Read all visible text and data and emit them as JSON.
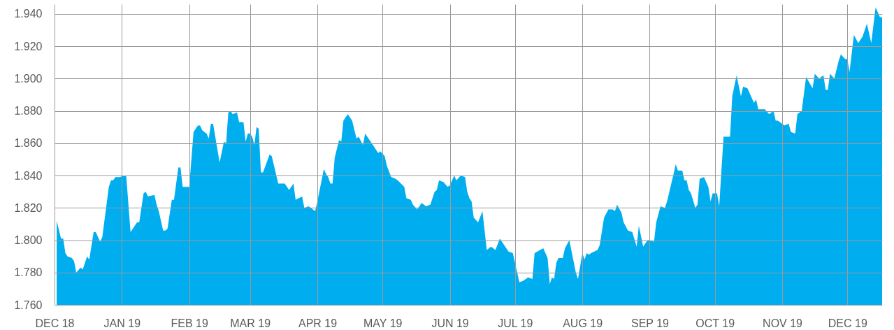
{
  "chart_data": {
    "type": "area",
    "color": "#00aeef",
    "grid": true,
    "xlim": [
      "2018-12-01",
      "2019-12-17"
    ],
    "ylim": [
      1.76,
      1.946
    ],
    "xticks": [
      {
        "value": "2018-12-01",
        "label": "DEC 18"
      },
      {
        "value": "2019-01-01",
        "label": "JAN 19"
      },
      {
        "value": "2019-02-01",
        "label": "FEB 19"
      },
      {
        "value": "2019-03-01",
        "label": "MAR 19"
      },
      {
        "value": "2019-04-01",
        "label": "APR 19"
      },
      {
        "value": "2019-05-01",
        "label": "MAY 19"
      },
      {
        "value": "2019-06-01",
        "label": "JUN 19"
      },
      {
        "value": "2019-07-01",
        "label": "JUL 19"
      },
      {
        "value": "2019-08-01",
        "label": "AUG 19"
      },
      {
        "value": "2019-09-01",
        "label": "SEP 19"
      },
      {
        "value": "2019-10-01",
        "label": "OCT 19"
      },
      {
        "value": "2019-11-01",
        "label": "NOV 19"
      },
      {
        "value": "2019-12-01",
        "label": "DEC 19"
      }
    ],
    "yticks": [
      {
        "value": 1.76,
        "label": "1.760"
      },
      {
        "value": 1.78,
        "label": "1.780"
      },
      {
        "value": 1.8,
        "label": "1.800"
      },
      {
        "value": 1.82,
        "label": "1.820"
      },
      {
        "value": 1.84,
        "label": "1.840"
      },
      {
        "value": 1.86,
        "label": "1.860"
      },
      {
        "value": 1.88,
        "label": "1.880"
      },
      {
        "value": 1.9,
        "label": "1.900"
      },
      {
        "value": 1.92,
        "label": "1.920"
      },
      {
        "value": 1.94,
        "label": "1.940"
      }
    ],
    "x": [
      "2018-12-02",
      "2018-12-04",
      "2018-12-05",
      "2018-12-06",
      "2018-12-07",
      "2018-12-09",
      "2018-12-10",
      "2018-12-11",
      "2018-12-13",
      "2018-12-14",
      "2018-12-16",
      "2018-12-17",
      "2018-12-19",
      "2018-12-20",
      "2018-12-22",
      "2018-12-23",
      "2018-12-26",
      "2018-12-27",
      "2018-12-28",
      "2018-12-29",
      "2018-12-31",
      "2019-01-02",
      "2019-01-03",
      "2019-01-05",
      "2019-01-06",
      "2019-01-08",
      "2019-01-09",
      "2019-01-11",
      "2019-01-12",
      "2019-01-13",
      "2019-01-16",
      "2019-01-17",
      "2019-01-18",
      "2019-01-20",
      "2019-01-21",
      "2019-01-22",
      "2019-01-24",
      "2019-01-25",
      "2019-01-27",
      "2019-01-28",
      "2019-01-29",
      "2019-02-01",
      "2019-02-03",
      "2019-02-05",
      "2019-02-06",
      "2019-02-07",
      "2019-02-08",
      "2019-02-09",
      "2019-02-10",
      "2019-02-11",
      "2019-02-12",
      "2019-02-15",
      "2019-02-17",
      "2019-02-18",
      "2019-02-19",
      "2019-02-20",
      "2019-02-21",
      "2019-02-23",
      "2019-02-24",
      "2019-02-26",
      "2019-02-27",
      "2019-02-28",
      "2019-03-01",
      "2019-03-02",
      "2019-03-03",
      "2019-03-04",
      "2019-03-05",
      "2019-03-06",
      "2019-03-07",
      "2019-03-10",
      "2019-03-11",
      "2019-03-14",
      "2019-03-16",
      "2019-03-17",
      "2019-03-18",
      "2019-03-19",
      "2019-03-21",
      "2019-03-22",
      "2019-03-25",
      "2019-03-26",
      "2019-03-28",
      "2019-03-31",
      "2019-04-01",
      "2019-04-04",
      "2019-04-05",
      "2019-04-06",
      "2019-04-07",
      "2019-04-08",
      "2019-04-09",
      "2019-04-11",
      "2019-04-12",
      "2019-04-13",
      "2019-04-15",
      "2019-04-17",
      "2019-04-19",
      "2019-04-20",
      "2019-04-22",
      "2019-04-23",
      "2019-04-26",
      "2019-04-29",
      "2019-04-30",
      "2019-05-02",
      "2019-05-03",
      "2019-05-05",
      "2019-05-07",
      "2019-05-08",
      "2019-05-11",
      "2019-05-12",
      "2019-05-14",
      "2019-05-15",
      "2019-05-17",
      "2019-05-19",
      "2019-05-21",
      "2019-05-23",
      "2019-05-25",
      "2019-05-26",
      "2019-05-27",
      "2019-05-29",
      "2019-05-31",
      "2019-06-01",
      "2019-06-03",
      "2019-06-04",
      "2019-06-06",
      "2019-06-08",
      "2019-06-09",
      "2019-06-10",
      "2019-06-11",
      "2019-06-12",
      "2019-06-14",
      "2019-06-16",
      "2019-06-18",
      "2019-06-20",
      "2019-06-22",
      "2019-06-24",
      "2019-06-26",
      "2019-06-28",
      "2019-06-30",
      "2019-07-03",
      "2019-07-05",
      "2019-07-07",
      "2019-07-09",
      "2019-07-10",
      "2019-07-14",
      "2019-07-16",
      "2019-07-17",
      "2019-07-18",
      "2019-07-19",
      "2019-07-20",
      "2019-07-21",
      "2019-07-23",
      "2019-07-24",
      "2019-07-26",
      "2019-07-29",
      "2019-07-30",
      "2019-08-01",
      "2019-08-02",
      "2019-08-03",
      "2019-08-04",
      "2019-08-05",
      "2019-08-08",
      "2019-08-09",
      "2019-08-11",
      "2019-08-13",
      "2019-08-15",
      "2019-08-16",
      "2019-08-17",
      "2019-08-19",
      "2019-08-20",
      "2019-08-22",
      "2019-08-24",
      "2019-08-26",
      "2019-08-27",
      "2019-08-29",
      "2019-08-31",
      "2019-09-01",
      "2019-09-03",
      "2019-09-04",
      "2019-09-06",
      "2019-09-08",
      "2019-09-09",
      "2019-09-12",
      "2019-09-13",
      "2019-09-14",
      "2019-09-16",
      "2019-09-17",
      "2019-09-18",
      "2019-09-19",
      "2019-09-20",
      "2019-09-22",
      "2019-09-23",
      "2019-09-24",
      "2019-09-26",
      "2019-09-28",
      "2019-09-29",
      "2019-09-30",
      "2019-10-02",
      "2019-10-03",
      "2019-10-05",
      "2019-10-08",
      "2019-10-09",
      "2019-10-11",
      "2019-10-13",
      "2019-10-14",
      "2019-10-16",
      "2019-10-19",
      "2019-10-20",
      "2019-10-21",
      "2019-10-24",
      "2019-10-26",
      "2019-10-28",
      "2019-10-29",
      "2019-10-30",
      "2019-11-02",
      "2019-11-04",
      "2019-11-05",
      "2019-11-07",
      "2019-11-08",
      "2019-11-10",
      "2019-11-12",
      "2019-11-15",
      "2019-11-16",
      "2019-11-18",
      "2019-11-20",
      "2019-11-21",
      "2019-11-22",
      "2019-11-23",
      "2019-11-25",
      "2019-11-27",
      "2019-11-28",
      "2019-11-30",
      "2019-12-01",
      "2019-12-02",
      "2019-12-04",
      "2019-12-06",
      "2019-12-08",
      "2019-12-10",
      "2019-12-12",
      "2019-12-14",
      "2019-12-15",
      "2019-12-16",
      "2019-12-17"
    ],
    "values": [
      1.812,
      1.801,
      1.801,
      1.792,
      1.79,
      1.789,
      1.787,
      1.78,
      1.783,
      1.782,
      1.79,
      1.788,
      1.805,
      1.805,
      1.799,
      1.802,
      1.833,
      1.837,
      1.837,
      1.839,
      1.839,
      1.84,
      1.84,
      1.805,
      1.807,
      1.811,
      1.811,
      1.829,
      1.83,
      1.827,
      1.828,
      1.822,
      1.818,
      1.806,
      1.806,
      1.807,
      1.825,
      1.825,
      1.845,
      1.845,
      1.833,
      1.833,
      1.867,
      1.871,
      1.871,
      1.868,
      1.867,
      1.866,
      1.863,
      1.872,
      1.872,
      1.848,
      1.861,
      1.86,
      1.879,
      1.88,
      1.878,
      1.879,
      1.873,
      1.873,
      1.861,
      1.866,
      1.866,
      1.864,
      1.859,
      1.87,
      1.869,
      1.842,
      1.842,
      1.853,
      1.852,
      1.835,
      1.835,
      1.835,
      1.833,
      1.831,
      1.835,
      1.825,
      1.827,
      1.82,
      1.821,
      1.818,
      1.824,
      1.844,
      1.841,
      1.839,
      1.835,
      1.835,
      1.851,
      1.862,
      1.861,
      1.874,
      1.878,
      1.874,
      1.863,
      1.864,
      1.859,
      1.866,
      1.86,
      1.854,
      1.855,
      1.852,
      1.846,
      1.839,
      1.838,
      1.837,
      1.833,
      1.826,
      1.825,
      1.822,
      1.819,
      1.823,
      1.821,
      1.822,
      1.83,
      1.831,
      1.837,
      1.836,
      1.833,
      1.834,
      1.84,
      1.837,
      1.84,
      1.839,
      1.83,
      1.826,
      1.824,
      1.814,
      1.811,
      1.818,
      1.794,
      1.796,
      1.794,
      1.801,
      1.797,
      1.793,
      1.792,
      1.774,
      1.775,
      1.777,
      1.776,
      1.792,
      1.795,
      1.789,
      1.773,
      1.777,
      1.776,
      1.786,
      1.789,
      1.789,
      1.795,
      1.8,
      1.78,
      1.776,
      1.792,
      1.788,
      1.792,
      1.791,
      1.792,
      1.794,
      1.797,
      1.814,
      1.819,
      1.819,
      1.818,
      1.822,
      1.817,
      1.811,
      1.806,
      1.805,
      1.796,
      1.809,
      1.796,
      1.8,
      1.8,
      1.799,
      1.811,
      1.821,
      1.82,
      1.824,
      1.841,
      1.847,
      1.843,
      1.843,
      1.837,
      1.837,
      1.831,
      1.829,
      1.82,
      1.822,
      1.838,
      1.839,
      1.833,
      1.824,
      1.829,
      1.829,
      1.821,
      1.864,
      1.864,
      1.889,
      1.902,
      1.889,
      1.895,
      1.894,
      1.885,
      1.887,
      1.881,
      1.881,
      1.878,
      1.88,
      1.874,
      1.874,
      1.871,
      1.872,
      1.867,
      1.866,
      1.878,
      1.88,
      1.901,
      1.894,
      1.903,
      1.9,
      1.902,
      1.893,
      1.893,
      1.903,
      1.9,
      1.911,
      1.915,
      1.912,
      1.912,
      1.904,
      1.927,
      1.922,
      1.926,
      1.934,
      1.922,
      1.944,
      1.941,
      1.938,
      1.938
    ]
  }
}
